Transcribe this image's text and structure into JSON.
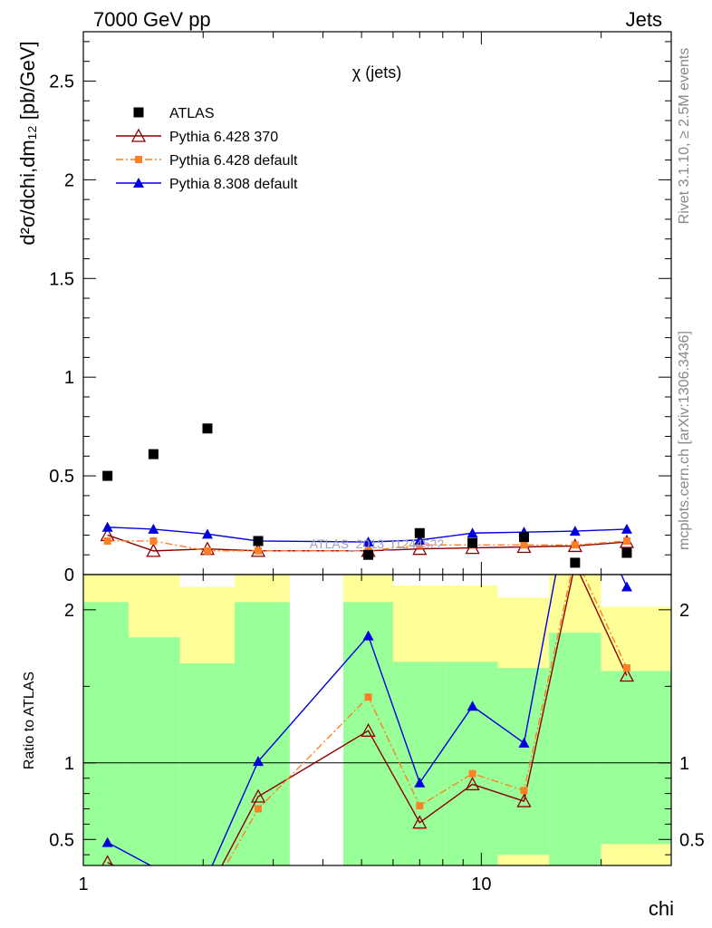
{
  "header": {
    "left": "7000 GeV pp",
    "right": "Jets"
  },
  "side_labels": {
    "rivet": "Rivet 3.1.10, ≥ 2.5M events",
    "mcplots": "mcplots.cern.ch [arXiv:1306.3436]"
  },
  "watermark": "ATLAS_2013_I1244522",
  "colors": {
    "data": "#000000",
    "p6_370": "#8b0000",
    "p6_default": "#ff7f24",
    "p8_default": "#0000dd",
    "band_inner": "#99ff99",
    "band_outer": "#ffff99"
  },
  "chart_data": [
    {
      "type": "scatter",
      "title": "χ (jets)",
      "ylabel": "d²σ/dchi,dm₁₂ [pb/GeV]",
      "xscale": "log",
      "xlim": [
        1,
        30
      ],
      "ylim": [
        0,
        2.75
      ],
      "yticks": [
        0,
        0.5,
        1,
        1.5,
        2,
        2.5
      ],
      "legend_position": "top-left",
      "x": [
        1.15,
        1.5,
        2.05,
        2.75,
        5.2,
        7.0,
        9.5,
        12.8,
        17.2,
        23.2
      ],
      "series": [
        {
          "name": "ATLAS",
          "key": "data",
          "marker": "square",
          "values": [
            0.5,
            0.61,
            0.74,
            0.17,
            0.1,
            0.21,
            0.16,
            0.19,
            0.06,
            0.11
          ]
        },
        {
          "name": "Pythia 6.428 370",
          "key": "p6_370",
          "marker": "open-triangle",
          "line": "solid",
          "values": [
            0.2,
            0.12,
            0.13,
            0.12,
            0.12,
            0.13,
            0.135,
            0.14,
            0.145,
            0.165
          ]
        },
        {
          "name": "Pythia 6.428 default",
          "key": "p6_default",
          "marker": "small-square",
          "line": "dash-dot",
          "values": [
            0.17,
            0.17,
            0.12,
            0.12,
            0.12,
            0.15,
            0.15,
            0.15,
            0.15,
            0.17
          ]
        },
        {
          "name": "Pythia 8.308 default",
          "key": "p8_default",
          "marker": "triangle",
          "line": "solid",
          "values": [
            0.24,
            0.23,
            0.205,
            0.17,
            0.165,
            0.175,
            0.21,
            0.215,
            0.22,
            0.23
          ]
        }
      ]
    },
    {
      "type": "line",
      "ylabel": "Ratio to ATLAS",
      "xlabel": "chi",
      "xscale": "log",
      "xlim": [
        1,
        30
      ],
      "ylim": [
        0.33,
        2.23
      ],
      "yticks": [
        0.5,
        1,
        2
      ],
      "xticks": [
        1,
        10
      ],
      "reference": 1,
      "bands": [
        {
          "xlo": 1.0,
          "xhi": 1.3,
          "inner": [
            0.33,
            2.05
          ],
          "outer": [
            0.33,
            2.23
          ]
        },
        {
          "xlo": 1.3,
          "xhi": 1.75,
          "inner": [
            0.33,
            1.82
          ],
          "outer": [
            0.33,
            2.23
          ]
        },
        {
          "xlo": 1.75,
          "xhi": 2.4,
          "inner": [
            0.33,
            1.65
          ],
          "outer": [
            0.33,
            2.15
          ]
        },
        {
          "xlo": 2.4,
          "xhi": 3.3,
          "inner": [
            0.33,
            2.05
          ],
          "outer": [
            0.33,
            2.23
          ]
        },
        {
          "xlo": 4.5,
          "xhi": 6.0,
          "inner": [
            0.33,
            2.05
          ],
          "outer": [
            0.33,
            2.23
          ]
        },
        {
          "xlo": 6.0,
          "xhi": 8.1,
          "inner": [
            0.33,
            1.66
          ],
          "outer": [
            0.33,
            2.16
          ]
        },
        {
          "xlo": 8.1,
          "xhi": 11.0,
          "inner": [
            0.33,
            1.66
          ],
          "outer": [
            0.33,
            2.16
          ]
        },
        {
          "xlo": 11.0,
          "xhi": 14.8,
          "inner": [
            0.4,
            1.62
          ],
          "outer": [
            0.33,
            2.08
          ]
        },
        {
          "xlo": 14.8,
          "xhi": 20.0,
          "inner": [
            0.33,
            1.85
          ],
          "outer": [
            0.33,
            2.23
          ]
        },
        {
          "xlo": 20.0,
          "xhi": 30.0,
          "inner": [
            0.47,
            1.6
          ],
          "outer": [
            0.33,
            2.02
          ]
        }
      ],
      "x": [
        1.15,
        1.5,
        2.05,
        2.75,
        5.2,
        7.0,
        9.5,
        12.8,
        17.2,
        23.2
      ],
      "series": [
        {
          "name": "Pythia 6.428 370",
          "key": "p6_370",
          "marker": "open-triangle",
          "line": "solid",
          "values": [
            0.35,
            0.2,
            0.15,
            0.78,
            1.21,
            0.61,
            0.86,
            0.75,
            2.3,
            1.57
          ]
        },
        {
          "name": "Pythia 6.428 default",
          "key": "p6_default",
          "marker": "small-square",
          "line": "dash-dot",
          "values": [
            0.3,
            0.18,
            0.12,
            0.7,
            1.43,
            0.72,
            0.93,
            0.82,
            2.35,
            1.62
          ]
        },
        {
          "name": "Pythia 8.308 default",
          "key": "p8_default",
          "marker": "triangle",
          "line": "solid",
          "values": [
            0.48,
            0.32,
            0.26,
            1.01,
            1.83,
            0.87,
            1.37,
            1.13,
            2.9,
            2.15
          ]
        }
      ]
    }
  ]
}
